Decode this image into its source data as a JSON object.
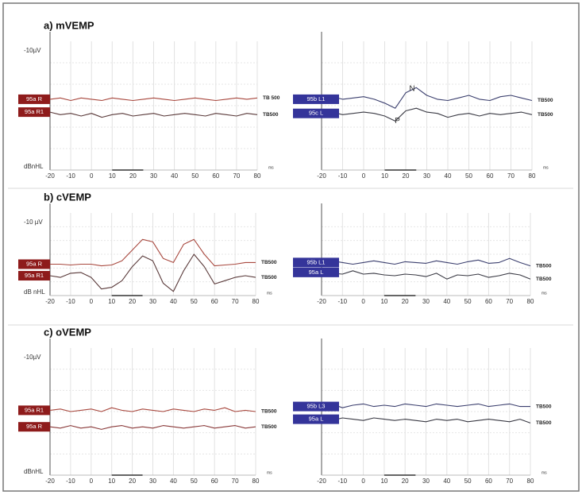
{
  "chart_data": [
    {
      "type": "line",
      "title": "a) mVEMP",
      "y_label_top": "-10µV",
      "y_label_bottom": "dBnHL",
      "x_unit": "ms",
      "x": [
        -20,
        -15,
        -10,
        -5,
        0,
        5,
        10,
        15,
        20,
        25,
        30,
        35,
        40,
        45,
        50,
        55,
        60,
        65,
        70,
        75,
        80
      ],
      "xlim": [
        -20,
        80
      ],
      "xticks": [
        -20,
        -10,
        0,
        10,
        20,
        30,
        40,
        50,
        60,
        70,
        80
      ],
      "ylim": [
        0,
        100
      ],
      "series": [
        {
          "name": "95a R",
          "stimulus": "TB 500",
          "color": "#a8483e",
          "label_color": "#8e1b1b",
          "values": [
            55,
            56,
            54,
            56,
            55,
            54,
            56,
            55,
            54,
            55,
            56,
            55,
            54,
            55,
            56,
            55,
            54,
            55,
            56,
            55,
            56
          ]
        },
        {
          "name": "95a R1",
          "stimulus": "TB500",
          "color": "#5a3a3a",
          "label_color": "#8e1b1b",
          "values": [
            45,
            43,
            44,
            42,
            44,
            41,
            43,
            44,
            42,
            43,
            44,
            42,
            43,
            44,
            43,
            42,
            44,
            43,
            42,
            44,
            43
          ]
        }
      ]
    },
    {
      "type": "line",
      "x_unit": "ms",
      "x": [
        -20,
        -15,
        -10,
        -5,
        0,
        5,
        10,
        15,
        20,
        25,
        30,
        35,
        40,
        45,
        50,
        55,
        60,
        65,
        70,
        75,
        80
      ],
      "xlim": [
        -20,
        80
      ],
      "xticks": [
        -20,
        -10,
        0,
        10,
        20,
        30,
        40,
        50,
        60,
        70,
        80
      ],
      "ylim": [
        0,
        100
      ],
      "series": [
        {
          "name": "95b L1",
          "stimulus": "TB500",
          "color": "#3b3f6e",
          "label_color": "#34349a",
          "values": [
            55,
            57,
            55,
            56,
            57,
            55,
            52,
            48,
            60,
            64,
            58,
            55,
            54,
            56,
            58,
            55,
            54,
            57,
            58,
            56,
            54
          ]
        },
        {
          "name": "95c L",
          "stimulus": "TB500",
          "color": "#3a3a44",
          "label_color": "#34349a",
          "values": [
            44,
            45,
            43,
            44,
            45,
            44,
            42,
            38,
            46,
            48,
            45,
            44,
            41,
            43,
            44,
            42,
            44,
            43,
            44,
            45,
            43
          ]
        }
      ],
      "annotations": [
        {
          "text": "N",
          "x": 23,
          "y": 63
        },
        {
          "text": "P",
          "x": 16,
          "y": 38
        }
      ]
    },
    {
      "type": "line",
      "title": "b) cVEMP",
      "y_label_top": "-10 µV",
      "y_label_bottom": "dB nHL",
      "x_unit": "ms",
      "x": [
        -20,
        -15,
        -10,
        -5,
        0,
        5,
        10,
        15,
        20,
        25,
        30,
        35,
        40,
        45,
        50,
        55,
        60,
        65,
        70,
        75,
        80
      ],
      "xlim": [
        -20,
        80
      ],
      "xticks": [
        -20,
        -10,
        0,
        10,
        20,
        30,
        40,
        50,
        60,
        70,
        80
      ],
      "ylim": [
        0,
        100
      ],
      "series": [
        {
          "name": "95a R",
          "stimulus": "TB500",
          "color": "#a8483e",
          "label_color": "#8e1b1b",
          "values": [
            38,
            38,
            37,
            38,
            38,
            36,
            37,
            42,
            55,
            68,
            65,
            45,
            40,
            62,
            68,
            50,
            36,
            37,
            38,
            40,
            40
          ]
        },
        {
          "name": "95a R1",
          "stimulus": "TB500",
          "color": "#5a3a3a",
          "label_color": "#8e1b1b",
          "values": [
            24,
            22,
            27,
            28,
            22,
            8,
            10,
            18,
            35,
            48,
            42,
            15,
            5,
            30,
            50,
            35,
            14,
            18,
            22,
            24,
            22
          ]
        }
      ]
    },
    {
      "type": "line",
      "x_unit": "ms",
      "x": [
        -20,
        -15,
        -10,
        -5,
        0,
        5,
        10,
        15,
        20,
        25,
        30,
        35,
        40,
        45,
        50,
        55,
        60,
        65,
        70,
        75,
        80
      ],
      "xlim": [
        -20,
        80
      ],
      "xticks": [
        -20,
        -10,
        0,
        10,
        20,
        30,
        40,
        50,
        60,
        70,
        80
      ],
      "ylim": [
        0,
        100
      ],
      "series": [
        {
          "name": "95b L1",
          "stimulus": "TB500",
          "color": "#3b3f6e",
          "label_color": "#34349a",
          "values": [
            40,
            42,
            40,
            38,
            40,
            42,
            40,
            38,
            41,
            40,
            39,
            42,
            40,
            38,
            41,
            43,
            39,
            40,
            45,
            40,
            36
          ]
        },
        {
          "name": "95a L",
          "stimulus": "TB500",
          "color": "#3a3a44",
          "label_color": "#34349a",
          "values": [
            28,
            27,
            26,
            30,
            26,
            27,
            25,
            24,
            26,
            25,
            23,
            27,
            20,
            25,
            24,
            26,
            22,
            24,
            27,
            25,
            20
          ]
        }
      ]
    },
    {
      "type": "line",
      "title": "c) oVEMP",
      "y_label_top": "-10µV",
      "y_label_bottom": "dBnHL",
      "x_unit": "ms",
      "x": [
        -20,
        -15,
        -10,
        -5,
        0,
        5,
        10,
        15,
        20,
        25,
        30,
        35,
        40,
        45,
        50,
        55,
        60,
        65,
        70,
        75,
        80
      ],
      "xlim": [
        -20,
        80
      ],
      "xticks": [
        -20,
        -10,
        0,
        10,
        20,
        30,
        40,
        50,
        60,
        70,
        80
      ],
      "ylim": [
        0,
        100
      ],
      "series": [
        {
          "name": "95a R1",
          "stimulus": "TB500",
          "color": "#a8483e",
          "label_color": "#8e1b1b",
          "values": [
            51,
            52,
            50,
            51,
            52,
            50,
            53,
            51,
            50,
            52,
            51,
            50,
            52,
            51,
            50,
            52,
            51,
            53,
            50,
            51,
            50
          ]
        },
        {
          "name": "95a R",
          "stimulus": "TB500",
          "color": "#8a3a3a",
          "label_color": "#8e1b1b",
          "values": [
            38,
            37,
            39,
            37,
            38,
            36,
            38,
            39,
            37,
            38,
            37,
            39,
            38,
            37,
            38,
            39,
            37,
            38,
            39,
            37,
            38
          ]
        }
      ]
    },
    {
      "type": "line",
      "x_unit": "ms",
      "x": [
        -20,
        -15,
        -10,
        -5,
        0,
        5,
        10,
        15,
        20,
        25,
        30,
        35,
        40,
        45,
        50,
        55,
        60,
        65,
        70,
        75,
        80
      ],
      "xlim": [
        -20,
        80
      ],
      "xticks": [
        -20,
        -10,
        0,
        10,
        20,
        30,
        40,
        50,
        60,
        70,
        80
      ],
      "ylim": [
        0,
        100
      ],
      "series": [
        {
          "name": "95b L3",
          "stimulus": "TB500",
          "color": "#3b3f6e",
          "label_color": "#34349a",
          "values": [
            54,
            56,
            53,
            55,
            56,
            54,
            55,
            54,
            56,
            55,
            54,
            56,
            55,
            54,
            55,
            56,
            54,
            55,
            56,
            54,
            54
          ]
        },
        {
          "name": "95a L",
          "stimulus": "TB500",
          "color": "#3a3a44",
          "label_color": "#34349a",
          "values": [
            44,
            43,
            45,
            44,
            43,
            45,
            44,
            43,
            44,
            43,
            42,
            44,
            43,
            44,
            42,
            43,
            44,
            43,
            42,
            44,
            41
          ]
        }
      ]
    }
  ]
}
